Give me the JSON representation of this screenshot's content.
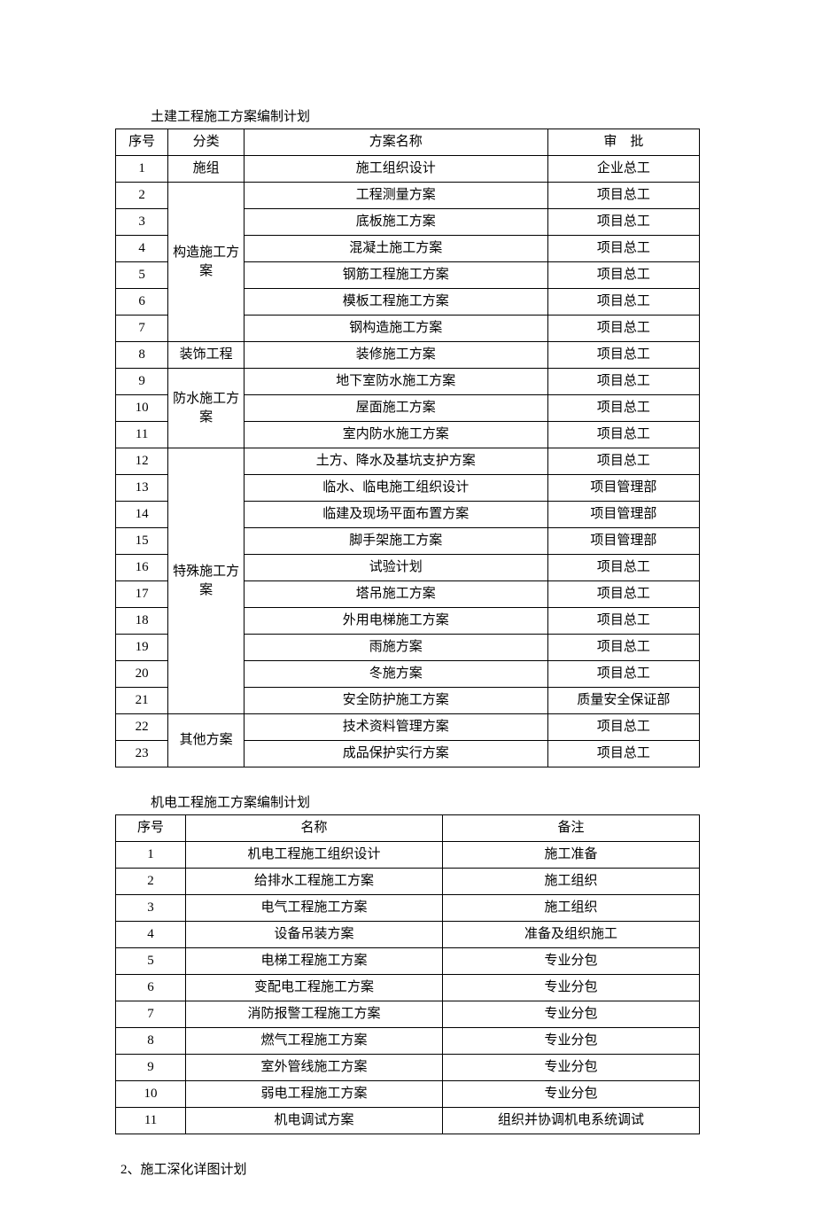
{
  "table1": {
    "title": "土建工程施工方案编制计划",
    "headers": {
      "seq": "序号",
      "category": "分类",
      "name": "方案名称",
      "approval": "审　批"
    },
    "categories": [
      {
        "label": "施组",
        "rowspan": 1
      },
      {
        "label": "构造施工方案",
        "rowspan": 6
      },
      {
        "label": "装饰工程",
        "rowspan": 1
      },
      {
        "label": "防水施工方案",
        "rowspan": 3
      },
      {
        "label": "特殊施工方案",
        "rowspan": 10
      },
      {
        "label": "其他方案",
        "rowspan": 2
      }
    ],
    "rows": [
      {
        "seq": "1",
        "catIndex": 0,
        "name": "施工组织设计",
        "approval": "企业总工"
      },
      {
        "seq": "2",
        "catIndex": 1,
        "name": "工程测量方案",
        "approval": "项目总工"
      },
      {
        "seq": "3",
        "catIndex": 1,
        "name": "底板施工方案",
        "approval": "项目总工"
      },
      {
        "seq": "4",
        "catIndex": 1,
        "name": "混凝土施工方案",
        "approval": "项目总工"
      },
      {
        "seq": "5",
        "catIndex": 1,
        "name": "钢筋工程施工方案",
        "approval": "项目总工"
      },
      {
        "seq": "6",
        "catIndex": 1,
        "name": "模板工程施工方案",
        "approval": "项目总工"
      },
      {
        "seq": "7",
        "catIndex": 1,
        "name": "钢构造施工方案",
        "approval": "项目总工"
      },
      {
        "seq": "8",
        "catIndex": 2,
        "name": "装修施工方案",
        "approval": "项目总工"
      },
      {
        "seq": "9",
        "catIndex": 3,
        "name": "地下室防水施工方案",
        "approval": "项目总工"
      },
      {
        "seq": "10",
        "catIndex": 3,
        "name": "屋面施工方案",
        "approval": "项目总工"
      },
      {
        "seq": "11",
        "catIndex": 3,
        "name": "室内防水施工方案",
        "approval": "项目总工"
      },
      {
        "seq": "12",
        "catIndex": 4,
        "name": "土方、降水及基坑支护方案",
        "approval": "项目总工"
      },
      {
        "seq": "13",
        "catIndex": 4,
        "name": "临水、临电施工组织设计",
        "approval": "项目管理部"
      },
      {
        "seq": "14",
        "catIndex": 4,
        "name": "临建及现场平面布置方案",
        "approval": "项目管理部"
      },
      {
        "seq": "15",
        "catIndex": 4,
        "name": "脚手架施工方案",
        "approval": "项目管理部"
      },
      {
        "seq": "16",
        "catIndex": 4,
        "name": "试验计划",
        "approval": "项目总工"
      },
      {
        "seq": "17",
        "catIndex": 4,
        "name": "塔吊施工方案",
        "approval": "项目总工"
      },
      {
        "seq": "18",
        "catIndex": 4,
        "name": "外用电梯施工方案",
        "approval": "项目总工"
      },
      {
        "seq": "19",
        "catIndex": 4,
        "name": "雨施方案",
        "approval": "项目总工"
      },
      {
        "seq": "20",
        "catIndex": 4,
        "name": "冬施方案",
        "approval": "项目总工"
      },
      {
        "seq": "21",
        "catIndex": 4,
        "name": "安全防护施工方案",
        "approval": "质量安全保证部"
      },
      {
        "seq": "22",
        "catIndex": 5,
        "name": "技术资料管理方案",
        "approval": "项目总工"
      },
      {
        "seq": "23",
        "catIndex": 5,
        "name": "成品保护实行方案",
        "approval": "项目总工"
      }
    ]
  },
  "table2": {
    "title": "机电工程施工方案编制计划",
    "headers": {
      "seq": "序号",
      "name": "名称",
      "note": "备注"
    },
    "rows": [
      {
        "seq": "1",
        "name": "机电工程施工组织设计",
        "note": "施工准备"
      },
      {
        "seq": "2",
        "name": "给排水工程施工方案",
        "note": "施工组织"
      },
      {
        "seq": "3",
        "name": "电气工程施工方案",
        "note": "施工组织"
      },
      {
        "seq": "4",
        "name": "设备吊装方案",
        "note": "准备及组织施工"
      },
      {
        "seq": "5",
        "name": "电梯工程施工方案",
        "note": "专业分包"
      },
      {
        "seq": "6",
        "name": "变配电工程施工方案",
        "note": "专业分包"
      },
      {
        "seq": "7",
        "name": "消防报警工程施工方案",
        "note": "专业分包"
      },
      {
        "seq": "8",
        "name": "燃气工程施工方案",
        "note": "专业分包"
      },
      {
        "seq": "9",
        "name": "室外管线施工方案",
        "note": "专业分包"
      },
      {
        "seq": "10",
        "name": "弱电工程施工方案",
        "note": "专业分包"
      },
      {
        "seq": "11",
        "name": "机电调试方案",
        "note": "组织并协调机电系统调试"
      }
    ]
  },
  "section": {
    "heading": "2、施工深化详图计划"
  }
}
